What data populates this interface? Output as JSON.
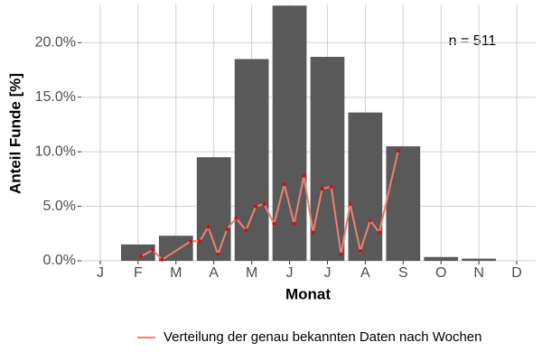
{
  "chart_data": {
    "type": "bar",
    "x_label": "Monat",
    "y_label": "Anteil Funde [%]",
    "annotation": "n = 511",
    "categories": [
      "J",
      "F",
      "M",
      "A",
      "M",
      "J",
      "J",
      "A",
      "S",
      "O",
      "N",
      "D"
    ],
    "values": [
      0,
      1.5,
      2.3,
      9.5,
      18.5,
      23.4,
      18.7,
      13.6,
      10.5,
      0.35,
      0.2,
      0
    ],
    "color": "#595959",
    "ylim": [
      0,
      23.5
    ],
    "yticks": [
      {
        "value": 0,
        "label": "0.0%"
      },
      {
        "value": 5,
        "label": "5.0%"
      },
      {
        "value": 10,
        "label": "10.0%"
      },
      {
        "value": 15,
        "label": "15.0%"
      },
      {
        "value": 20,
        "label": "20.0%"
      }
    ],
    "grid": true,
    "line": {
      "name": "Verteilung der genau bekannten Daten nach Wochen",
      "color": "#f08070",
      "point_color": "#cc1010",
      "x": [
        2.08,
        2.39,
        2.63,
        3.39,
        3.63,
        3.85,
        4.11,
        4.35,
        4.59,
        4.85,
        5.11,
        5.33,
        5.59,
        5.86,
        6.12,
        6.38,
        6.62,
        6.86,
        7.1,
        7.36,
        7.6,
        7.87,
        8.13,
        8.37,
        8.87
      ],
      "values": [
        0.4,
        1.0,
        0.1,
        1.8,
        1.8,
        3.1,
        0.6,
        2.9,
        3.9,
        2.8,
        5.0,
        5.2,
        3.4,
        7.0,
        3.4,
        7.8,
        2.6,
        6.6,
        6.8,
        0.6,
        5.2,
        0.9,
        3.7,
        2.6,
        10.1
      ]
    },
    "legend": "bottom"
  }
}
